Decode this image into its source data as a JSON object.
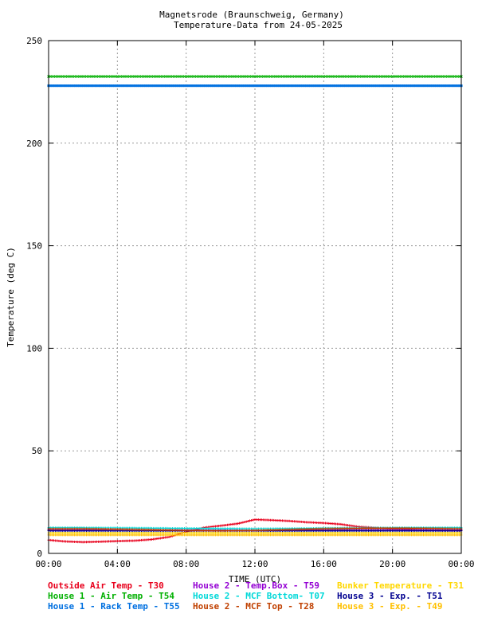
{
  "chart_data": {
    "type": "scatter",
    "title": "Magnetsrode (Braunschweig, Germany)",
    "subtitle": "Temperature-Data from 24-05-2025",
    "xlabel": "TIME (UTC)",
    "ylabel": "Temperature (deg C)",
    "xlim": [
      0,
      24
    ],
    "ylim": [
      0,
      250
    ],
    "x_ticks": [
      "00:00",
      "04:00",
      "08:00",
      "12:00",
      "16:00",
      "20:00",
      "00:00"
    ],
    "y_ticks": [
      "0",
      "50",
      "100",
      "150",
      "200",
      "250"
    ],
    "grid": true,
    "legend_placement": "bottom",
    "series": [
      {
        "name": "Outside Air Temp",
        "code": "T30",
        "color": "#e8001c",
        "marker": "plus",
        "x": [
          0,
          1,
          2,
          3,
          4,
          5,
          6,
          7,
          8,
          9,
          10,
          11,
          12,
          13,
          14,
          15,
          16,
          17,
          18,
          19,
          20,
          21,
          22,
          23,
          24
        ],
        "y": [
          6.5,
          5.8,
          5.5,
          5.7,
          6.0,
          6.2,
          6.8,
          8.0,
          10.5,
          12.5,
          13.5,
          14.5,
          16.5,
          16.2,
          15.8,
          15.2,
          14.8,
          14.2,
          13.0,
          12.5,
          12.0,
          11.8,
          11.5,
          11.2,
          11.0
        ]
      },
      {
        "name": "House 2 - Temp.Box",
        "code": "T59",
        "color": "#9400d3",
        "marker": "plus",
        "x": [
          0,
          2,
          4,
          6,
          8,
          10,
          12,
          14,
          16,
          18,
          20,
          22,
          24
        ],
        "y": [
          11.5,
          11.5,
          11.6,
          11.5,
          11.4,
          11.3,
          11.2,
          11.3,
          11.5,
          11.6,
          11.6,
          11.5,
          11.5
        ]
      },
      {
        "name": "Bunker Temperature",
        "code": "T31",
        "color": "#ffd700",
        "marker": "plus",
        "x": [
          0,
          2,
          4,
          6,
          8,
          10,
          12,
          14,
          16,
          18,
          20,
          22,
          24
        ],
        "y": [
          10.0,
          10.0,
          10.0,
          10.0,
          10.0,
          10.0,
          10.0,
          10.0,
          10.0,
          10.0,
          10.0,
          10.0,
          10.0
        ]
      },
      {
        "name": "House 1 - Air  Temp",
        "code": "T54",
        "color": "#00b000",
        "marker": "cross",
        "x": [
          0,
          2,
          4,
          6,
          8,
          10,
          12,
          14,
          16,
          18,
          20,
          22,
          24
        ],
        "y": [
          232.5,
          232.5,
          232.5,
          232.5,
          232.5,
          232.5,
          232.5,
          232.5,
          232.5,
          232.5,
          232.5,
          232.5,
          232.5
        ]
      },
      {
        "name": "House 2 - MCF Bottom",
        "code": "T07",
        "color": "#00d8d8",
        "marker": "plus",
        "x": [
          0,
          2,
          4,
          6,
          8,
          10,
          12,
          14,
          16,
          18,
          20,
          22,
          24
        ],
        "y": [
          12.5,
          12.5,
          12.4,
          12.3,
          12.2,
          12.1,
          12.0,
          12.1,
          12.3,
          12.4,
          12.5,
          12.5,
          12.5
        ]
      },
      {
        "name": "House 3 - Exp.",
        "code": "T51",
        "color": "#000090",
        "marker": "plus",
        "x": [
          0,
          2,
          4,
          6,
          8,
          10,
          12,
          14,
          16,
          18,
          20,
          22,
          24
        ],
        "y": [
          11.0,
          11.0,
          11.0,
          11.0,
          11.0,
          11.0,
          11.0,
          11.0,
          11.0,
          11.0,
          11.0,
          11.0,
          11.0
        ]
      },
      {
        "name": "House 1 - Rack Temp",
        "code": "T55",
        "color": "#0070e0",
        "marker": "dash",
        "x": [
          0,
          2,
          4,
          6,
          8,
          10,
          12,
          14,
          16,
          18,
          20,
          22,
          24
        ],
        "y": [
          228.0,
          228.0,
          228.0,
          228.0,
          228.0,
          228.0,
          228.0,
          228.0,
          228.0,
          228.0,
          228.0,
          228.0,
          228.0
        ]
      },
      {
        "name": "House 2 - MCF Top",
        "code": "T28",
        "color": "#c04000",
        "marker": "plus",
        "x": [
          0,
          2,
          4,
          6,
          8,
          10,
          12,
          14,
          16,
          18,
          20,
          22,
          24
        ],
        "y": [
          12.0,
          12.0,
          11.8,
          11.5,
          11.2,
          11.0,
          11.2,
          11.6,
          12.0,
          12.2,
          12.3,
          12.2,
          12.0
        ]
      },
      {
        "name": "House 3 - Exp.",
        "code": "T49",
        "color": "#ffc000",
        "marker": "plus",
        "x": [
          0,
          2,
          4,
          6,
          8,
          10,
          12,
          14,
          16,
          18,
          20,
          22,
          24
        ],
        "y": [
          9.0,
          9.0,
          9.0,
          9.0,
          9.0,
          9.0,
          9.0,
          9.0,
          9.0,
          9.0,
          9.0,
          9.0,
          9.0
        ]
      }
    ]
  },
  "legend": {
    "rows": [
      [
        {
          "label": "Outside Air Temp    - T30",
          "color": "#e8001c"
        },
        {
          "label": "House 2 - Temp.Box  - T59",
          "color": "#9400d3"
        },
        {
          "label": "Bunker Temperature  - T31",
          "color": "#ffd700"
        }
      ],
      [
        {
          "label": "House 1 - Air  Temp - T54",
          "color": "#00b000"
        },
        {
          "label": "House 2 - MCF Bottom- T07",
          "color": "#00d8d8"
        },
        {
          "label": "House 3 - Exp.      - T51",
          "color": "#000090"
        }
      ],
      [
        {
          "label": "House 1 - Rack Temp - T55",
          "color": "#0070e0"
        },
        {
          "label": "House 2 - MCF Top   - T28",
          "color": "#c04000"
        },
        {
          "label": "House 3 - Exp.      - T49",
          "color": "#ffc000"
        }
      ]
    ]
  }
}
